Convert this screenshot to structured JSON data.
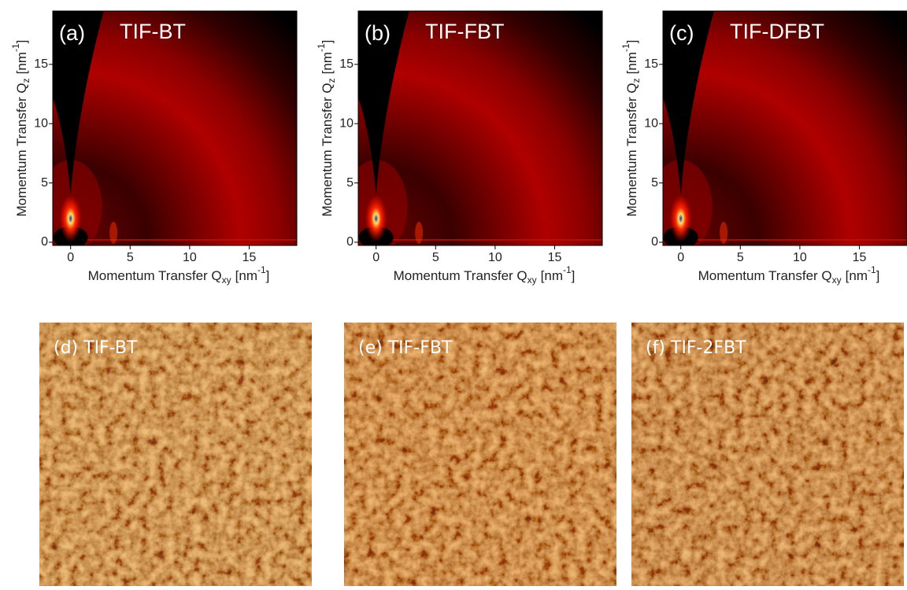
{
  "axes": {
    "xlabel": {
      "main": "Momentum Transfer Q",
      "sub": "xy",
      "unit": "[nm",
      "sup": "-1",
      "close": "]"
    },
    "ylabel": {
      "main": "Momentum Transfer Q",
      "sub": "z",
      "unit": "[nm",
      "sup": "-1",
      "close": "]"
    },
    "xlim": [
      -1.5,
      19
    ],
    "ylim": [
      -0.27,
      19.5
    ],
    "xticks": [
      0,
      5,
      10,
      15
    ],
    "yticks": [
      0,
      5,
      10,
      15
    ]
  },
  "giwaxs": [
    {
      "label": "(a)",
      "title": "TIF-BT"
    },
    {
      "label": "(b)",
      "title": "TIF-FBT"
    },
    {
      "label": "(c)",
      "title": "TIF-DFBT"
    }
  ],
  "afm": [
    {
      "label": "(d) TIF-BT"
    },
    {
      "label": "(e) TIF-FBT"
    },
    {
      "label": "(f) TIF-2FBT"
    }
  ]
}
